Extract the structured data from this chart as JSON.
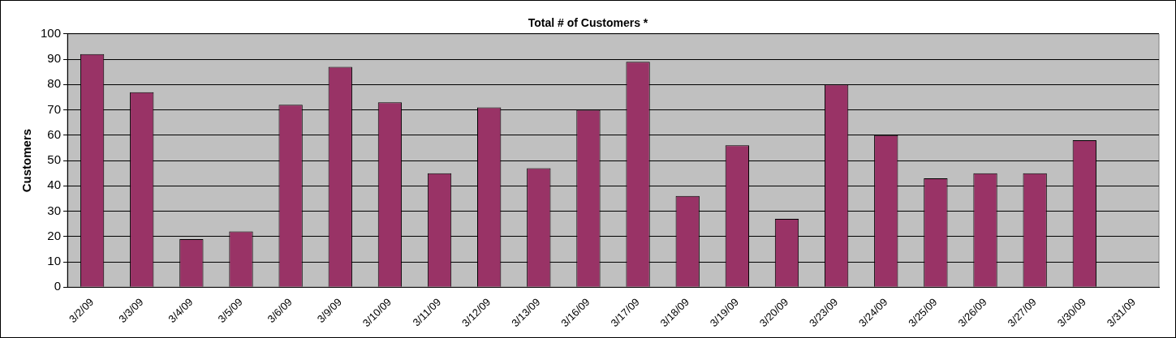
{
  "chart_data": {
    "type": "bar",
    "title": "Total # of Customers *",
    "ylabel": "Customers",
    "categories": [
      "3/2/09",
      "3/3/09",
      "3/4/09",
      "3/5/09",
      "3/6/09",
      "3/9/09",
      "3/10/09",
      "3/11/09",
      "3/12/09",
      "3/13/09",
      "3/16/09",
      "3/17/09",
      "3/18/09",
      "3/19/09",
      "3/20/09",
      "3/23/09",
      "3/24/09",
      "3/25/09",
      "3/26/09",
      "3/27/09",
      "3/30/09",
      "3/31/09"
    ],
    "values": [
      92,
      77,
      19,
      22,
      72,
      87,
      73,
      45,
      71,
      47,
      70,
      89,
      36,
      56,
      27,
      80,
      60,
      43,
      45,
      45,
      58,
      null
    ],
    "color": "#993366",
    "ylim": [
      0,
      100
    ],
    "yticks": [
      0,
      10,
      20,
      30,
      40,
      50,
      60,
      70,
      80,
      90,
      100
    ],
    "grid": "y",
    "legend": false
  }
}
